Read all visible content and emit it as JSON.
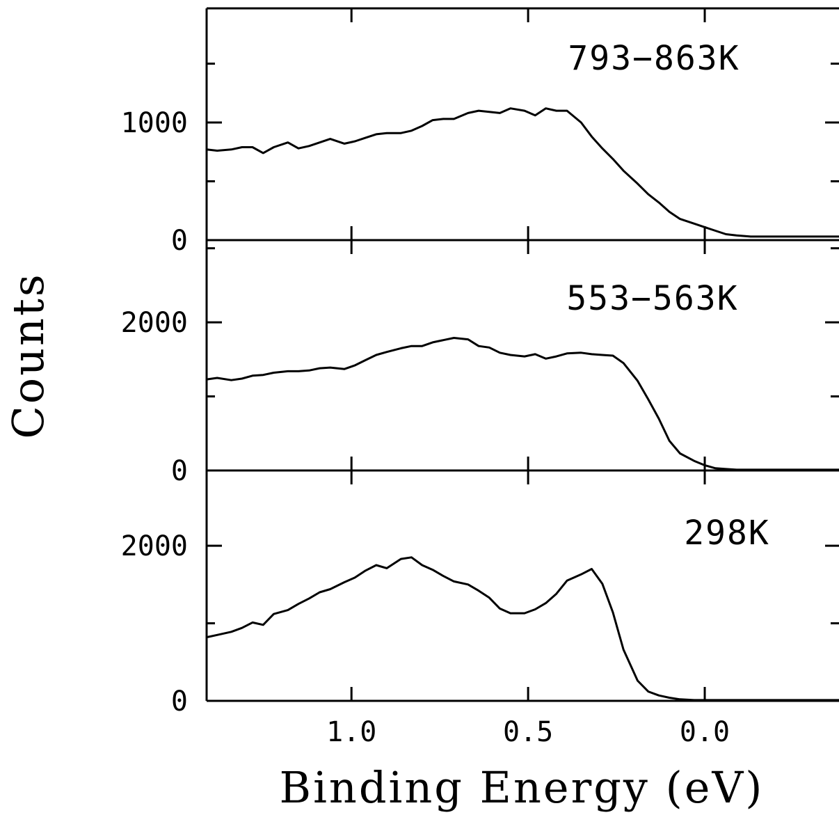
{
  "chart_data": {
    "type": "line",
    "xlabel": "Binding Energy (eV)",
    "ylabel": "Counts",
    "xlim": [
      1.41,
      -0.38
    ],
    "x_ticks": [
      "1.0",
      "0.5",
      "0.0"
    ],
    "x_tick_values": [
      1.0,
      0.5,
      0.0
    ],
    "x_minor_ticks": [
      1.0,
      0.5,
      0.0
    ],
    "grid": false,
    "line_color": "#000000",
    "panels": [
      {
        "label": "793−863K",
        "ylim": [
          0,
          1970
        ],
        "y_ticks": [
          "1000",
          "0"
        ],
        "y_tick_values": [
          1000,
          0
        ],
        "y_minor_ticks": [
          500,
          1500
        ],
        "x": [
          1.41,
          1.38,
          1.34,
          1.31,
          1.28,
          1.25,
          1.22,
          1.18,
          1.15,
          1.12,
          1.09,
          1.06,
          1.02,
          0.99,
          0.96,
          0.93,
          0.9,
          0.86,
          0.83,
          0.8,
          0.77,
          0.74,
          0.71,
          0.67,
          0.64,
          0.61,
          0.58,
          0.55,
          0.51,
          0.48,
          0.45,
          0.42,
          0.39,
          0.35,
          0.32,
          0.29,
          0.26,
          0.23,
          0.19,
          0.16,
          0.13,
          0.1,
          0.07,
          0.03,
          0.0,
          -0.03,
          -0.06,
          -0.09,
          -0.13,
          -0.16,
          -0.19,
          -0.22,
          -0.25,
          -0.29,
          -0.32,
          -0.35,
          -0.38
        ],
        "y": [
          770,
          760,
          770,
          790,
          790,
          740,
          790,
          830,
          780,
          800,
          830,
          860,
          820,
          840,
          870,
          900,
          910,
          910,
          930,
          970,
          1020,
          1030,
          1030,
          1080,
          1100,
          1090,
          1080,
          1120,
          1100,
          1060,
          1120,
          1100,
          1100,
          1000,
          880,
          780,
          690,
          590,
          480,
          390,
          320,
          240,
          180,
          140,
          110,
          80,
          50,
          40,
          30,
          30,
          30,
          30,
          30,
          30,
          30,
          30,
          30
        ]
      },
      {
        "label": "553−563K",
        "ylim": [
          0,
          3110
        ],
        "y_ticks": [
          "2000",
          "0"
        ],
        "y_tick_values": [
          2000,
          0
        ],
        "y_minor_ticks": [
          1000,
          3000
        ],
        "x": [
          1.41,
          1.38,
          1.34,
          1.31,
          1.28,
          1.25,
          1.22,
          1.18,
          1.15,
          1.12,
          1.09,
          1.06,
          1.02,
          0.99,
          0.96,
          0.93,
          0.9,
          0.86,
          0.83,
          0.8,
          0.77,
          0.74,
          0.71,
          0.67,
          0.64,
          0.61,
          0.58,
          0.55,
          0.51,
          0.48,
          0.45,
          0.42,
          0.39,
          0.35,
          0.32,
          0.29,
          0.26,
          0.23,
          0.19,
          0.16,
          0.13,
          0.1,
          0.07,
          0.03,
          0.0,
          -0.03,
          -0.06,
          -0.09,
          -0.13,
          -0.16,
          -0.19,
          -0.22,
          -0.25,
          -0.29,
          -0.32,
          -0.35,
          -0.38
        ],
        "y": [
          1230,
          1250,
          1220,
          1240,
          1280,
          1290,
          1320,
          1340,
          1340,
          1350,
          1380,
          1390,
          1370,
          1420,
          1490,
          1560,
          1600,
          1650,
          1680,
          1680,
          1730,
          1760,
          1790,
          1770,
          1680,
          1660,
          1590,
          1560,
          1540,
          1570,
          1510,
          1540,
          1580,
          1590,
          1570,
          1560,
          1550,
          1450,
          1210,
          960,
          700,
          400,
          230,
          130,
          70,
          30,
          20,
          10,
          10,
          10,
          10,
          10,
          10,
          10,
          10,
          10,
          10
        ]
      },
      {
        "label": "298K",
        "ylim": [
          0,
          2970
        ],
        "y_ticks": [
          "2000",
          "0"
        ],
        "y_tick_values": [
          2000,
          0
        ],
        "y_minor_ticks": [
          1000
        ],
        "x": [
          1.41,
          1.38,
          1.34,
          1.31,
          1.28,
          1.25,
          1.22,
          1.18,
          1.15,
          1.12,
          1.09,
          1.06,
          1.02,
          0.99,
          0.96,
          0.93,
          0.9,
          0.86,
          0.83,
          0.8,
          0.77,
          0.74,
          0.71,
          0.67,
          0.64,
          0.61,
          0.58,
          0.55,
          0.51,
          0.48,
          0.45,
          0.42,
          0.39,
          0.35,
          0.32,
          0.29,
          0.26,
          0.23,
          0.19,
          0.16,
          0.13,
          0.1,
          0.07,
          0.03,
          0.0,
          -0.03,
          -0.06,
          -0.09,
          -0.13,
          -0.16,
          -0.19,
          -0.22,
          -0.25,
          -0.29,
          -0.32,
          -0.35,
          -0.38
        ],
        "y": [
          820,
          850,
          890,
          940,
          1010,
          980,
          1120,
          1170,
          1250,
          1320,
          1400,
          1440,
          1530,
          1590,
          1680,
          1750,
          1710,
          1830,
          1850,
          1750,
          1690,
          1610,
          1540,
          1500,
          1420,
          1330,
          1190,
          1130,
          1130,
          1180,
          1260,
          1380,
          1550,
          1630,
          1700,
          1510,
          1140,
          660,
          260,
          120,
          70,
          40,
          20,
          10,
          10,
          10,
          10,
          10,
          10,
          10,
          10,
          10,
          10,
          10,
          10,
          10,
          10
        ]
      }
    ]
  }
}
